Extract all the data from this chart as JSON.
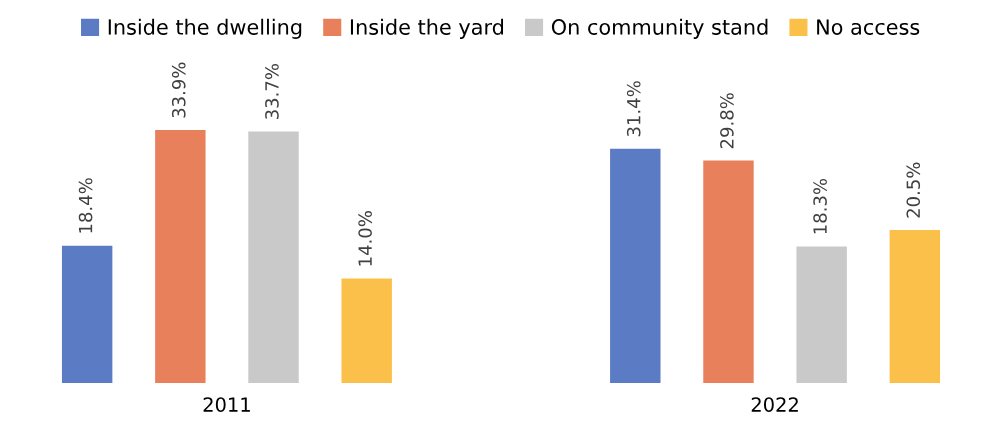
{
  "chart_data": {
    "type": "bar",
    "categories": [
      "2011",
      "2022"
    ],
    "series": [
      {
        "name": "Inside the dwelling",
        "color": "#5b7bc4",
        "values": [
          18.4,
          31.4
        ],
        "value_labels": [
          "18.4%",
          "31.4%"
        ]
      },
      {
        "name": "Inside the yard",
        "color": "#e8805c",
        "values": [
          33.9,
          29.8
        ],
        "value_labels": [
          "33.9%",
          "29.8%"
        ]
      },
      {
        "name": "On community stand",
        "color": "#c9c9c9",
        "values": [
          33.7,
          18.3
        ],
        "value_labels": [
          "33.7%",
          "18.3%"
        ]
      },
      {
        "name": "No access",
        "color": "#fbc04a",
        "values": [
          14.0,
          20.5
        ],
        "value_labels": [
          "14.0%",
          "20.5%"
        ]
      }
    ],
    "legend": "top"
  }
}
